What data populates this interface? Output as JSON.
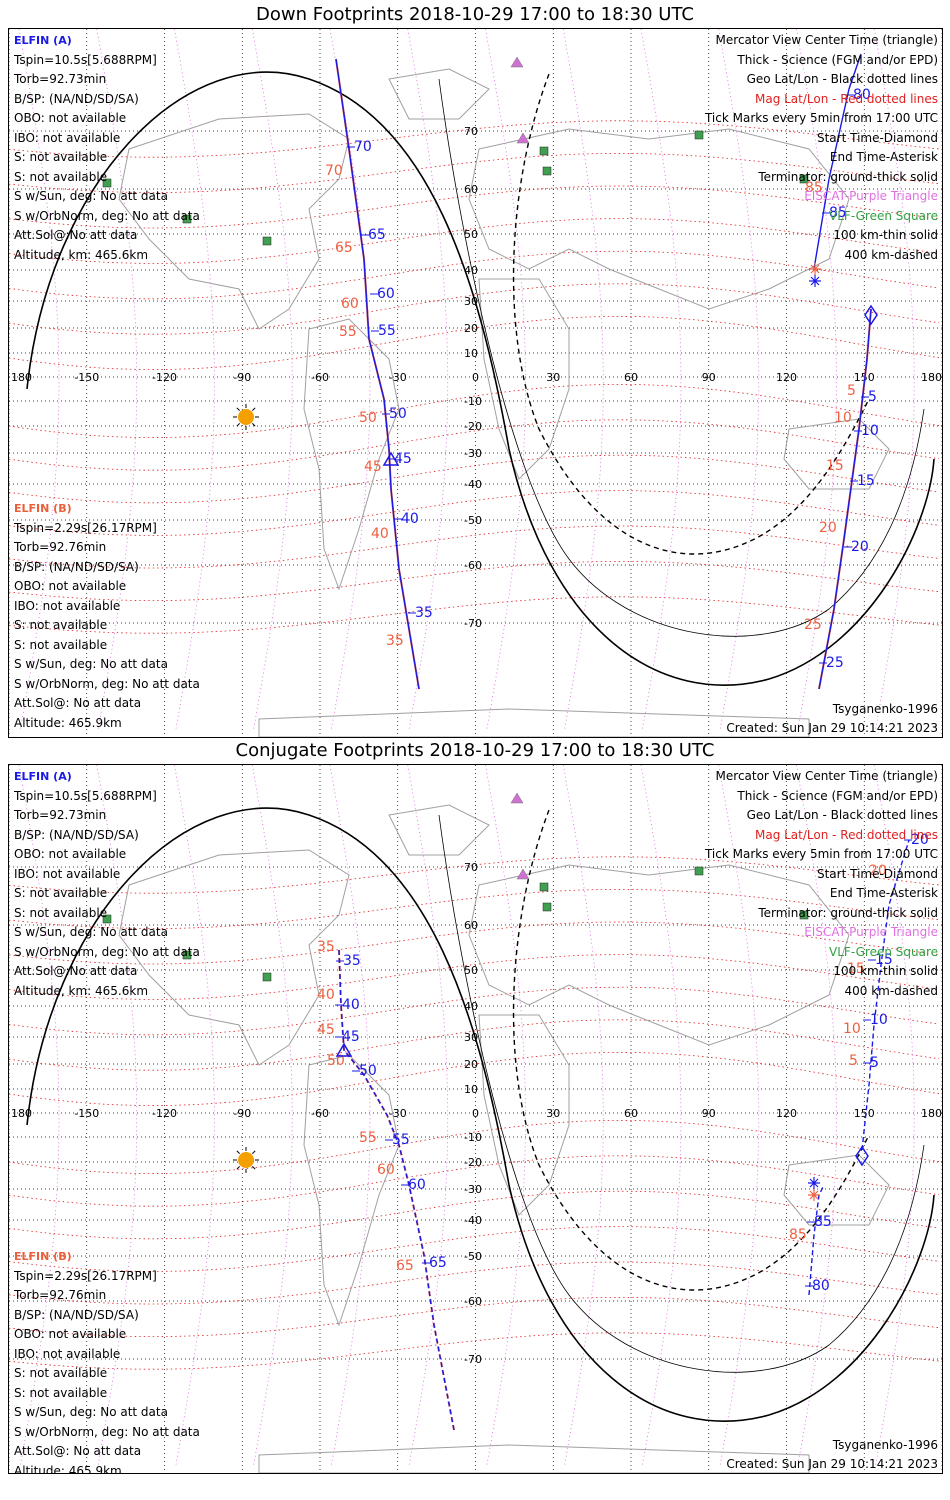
{
  "panels": [
    {
      "id": "down",
      "title": "Down Footprints 2018-10-29 17:00 to 18:30 UTC",
      "sat_a": {
        "name": "ELFIN (A)",
        "lines": [
          "Tspin=10.5s[5.688RPM]",
          "Torb=92.73min",
          "B/SP: (NA/ND/SD/SA)",
          "OBO: not available",
          "IBO: not available",
          "S: not available",
          "S: not available",
          "S w/Sun, deg: No att data",
          "S w/OrbNorm, deg: No att data",
          "Att.Sol@:No att data",
          "Altitude, km: 465.6km"
        ]
      },
      "sat_b": {
        "name": "ELFIN (B)",
        "lines": [
          "Tspin=2.29s[26.17RPM]",
          "Torb=92.76min",
          "B/SP: (NA/ND/SD/SA)",
          "OBO: not available",
          "IBO: not available",
          "S: not available",
          "S: not available",
          "S w/Sun, deg: No att data",
          "S w/OrbNorm, deg: No att data",
          "Att.Sol@: No att data",
          "Altitude: 465.9km"
        ]
      },
      "legend": [
        "Mercator View Center Time (triangle)",
        "Thick - Science (FGM and/or EPD)",
        "Geo Lat/Lon - Black dotted lines",
        "Mag Lat/Lon - Red dotted lines",
        "Tick Marks every 5min from 17:00 UTC",
        "Start Time-Diamond",
        "End Time-Asterisk",
        "Terminator: ground-thick solid",
        "EISCAT-Purple Triangle",
        "VLF-Green Square",
        "100 km-thin solid",
        "400 km-dashed"
      ],
      "model": "Tsyganenko-1996",
      "created": "Created: Sun Jan 29 10:14:21 2023",
      "track_a_labels": [
        "70",
        "65",
        "60",
        "55",
        "50",
        "45",
        "40",
        "35",
        "85",
        "80",
        "5",
        "10",
        "15",
        "20",
        "25"
      ],
      "track_b_labels": [
        "70",
        "65",
        "60",
        "55",
        "50",
        "45",
        "40",
        "35",
        "85",
        "5",
        "10",
        "15",
        "20",
        "25"
      ]
    },
    {
      "id": "conjugate",
      "title": "Conjugate Footprints 2018-10-29 17:00 to 18:30 UTC",
      "sat_a": {
        "name": "ELFIN (A)",
        "lines": [
          "Tspin=10.5s[5.688RPM]",
          "Torb=92.73min",
          "B/SP: (NA/ND/SD/SA)",
          "OBO: not available",
          "IBO: not available",
          "S: not available",
          "S: not available",
          "S w/Sun, deg: No att data",
          "S w/OrbNorm, deg: No att data",
          "Att.Sol@:No att data",
          "Altitude, km: 465.6km"
        ]
      },
      "sat_b": {
        "name": "ELFIN (B)",
        "lines": [
          "Tspin=2.29s[26.17RPM]",
          "Torb=92.76min",
          "B/SP: (NA/ND/SD/SA)",
          "OBO: not available",
          "IBO: not available",
          "S: not available",
          "S: not available",
          "S w/Sun, deg: No att data",
          "S w/OrbNorm, deg: No att data",
          "Att.Sol@: No att data",
          "Altitude: 465.9km"
        ]
      },
      "legend": [
        "Mercator View Center Time (triangle)",
        "Thick - Science (FGM and/or EPD)",
        "Geo Lat/Lon - Black dotted lines",
        "Mag Lat/Lon - Red dotted lines",
        "Tick Marks every 5min from 17:00 UTC",
        "Start Time-Diamond",
        "End Time-Asterisk",
        "Terminator: ground-thick solid",
        "EISCAT-Purple Triangle",
        "VLF-Green Square",
        "100 km-thin solid",
        "400 km-dashed"
      ],
      "model": "Tsyganenko-1996",
      "created": "Created: Sun Jan 29 10:14:21 2023",
      "track_a_labels": [
        "35",
        "40",
        "45",
        "50",
        "55",
        "60",
        "65",
        "85",
        "80",
        "5",
        "10",
        "15",
        "20"
      ],
      "track_b_labels": [
        "35",
        "40",
        "45",
        "50",
        "55",
        "60",
        "65",
        "85",
        "5",
        "10",
        "15",
        "20"
      ]
    }
  ],
  "axes": {
    "lon_ticks": [
      "180",
      "-150",
      "-120",
      "-90",
      "-60",
      "-30",
      "0",
      "30",
      "60",
      "90",
      "120",
      "150",
      "180"
    ],
    "lat_ticks": [
      "70",
      "60",
      "50",
      "40",
      "30",
      "20",
      "10",
      "-10",
      "-20",
      "-30",
      "-40",
      "-50",
      "-60",
      "-70"
    ]
  },
  "colors": {
    "sat_a": "#1a1ae6",
    "sat_b": "#ee6040",
    "mag_grid": "#e02020",
    "geo_grid": "#000000",
    "pink_lines": "#e060e0",
    "coast": "#a0a0a0",
    "sun": "#f5a000",
    "eiscat": "#d070d0",
    "vlf": "#40a050"
  },
  "icons": [
    "sun-icon",
    "eiscat-triangle-icon",
    "vlf-square-icon",
    "start-diamond-icon",
    "end-asterisk-icon",
    "center-triangle-icon"
  ]
}
